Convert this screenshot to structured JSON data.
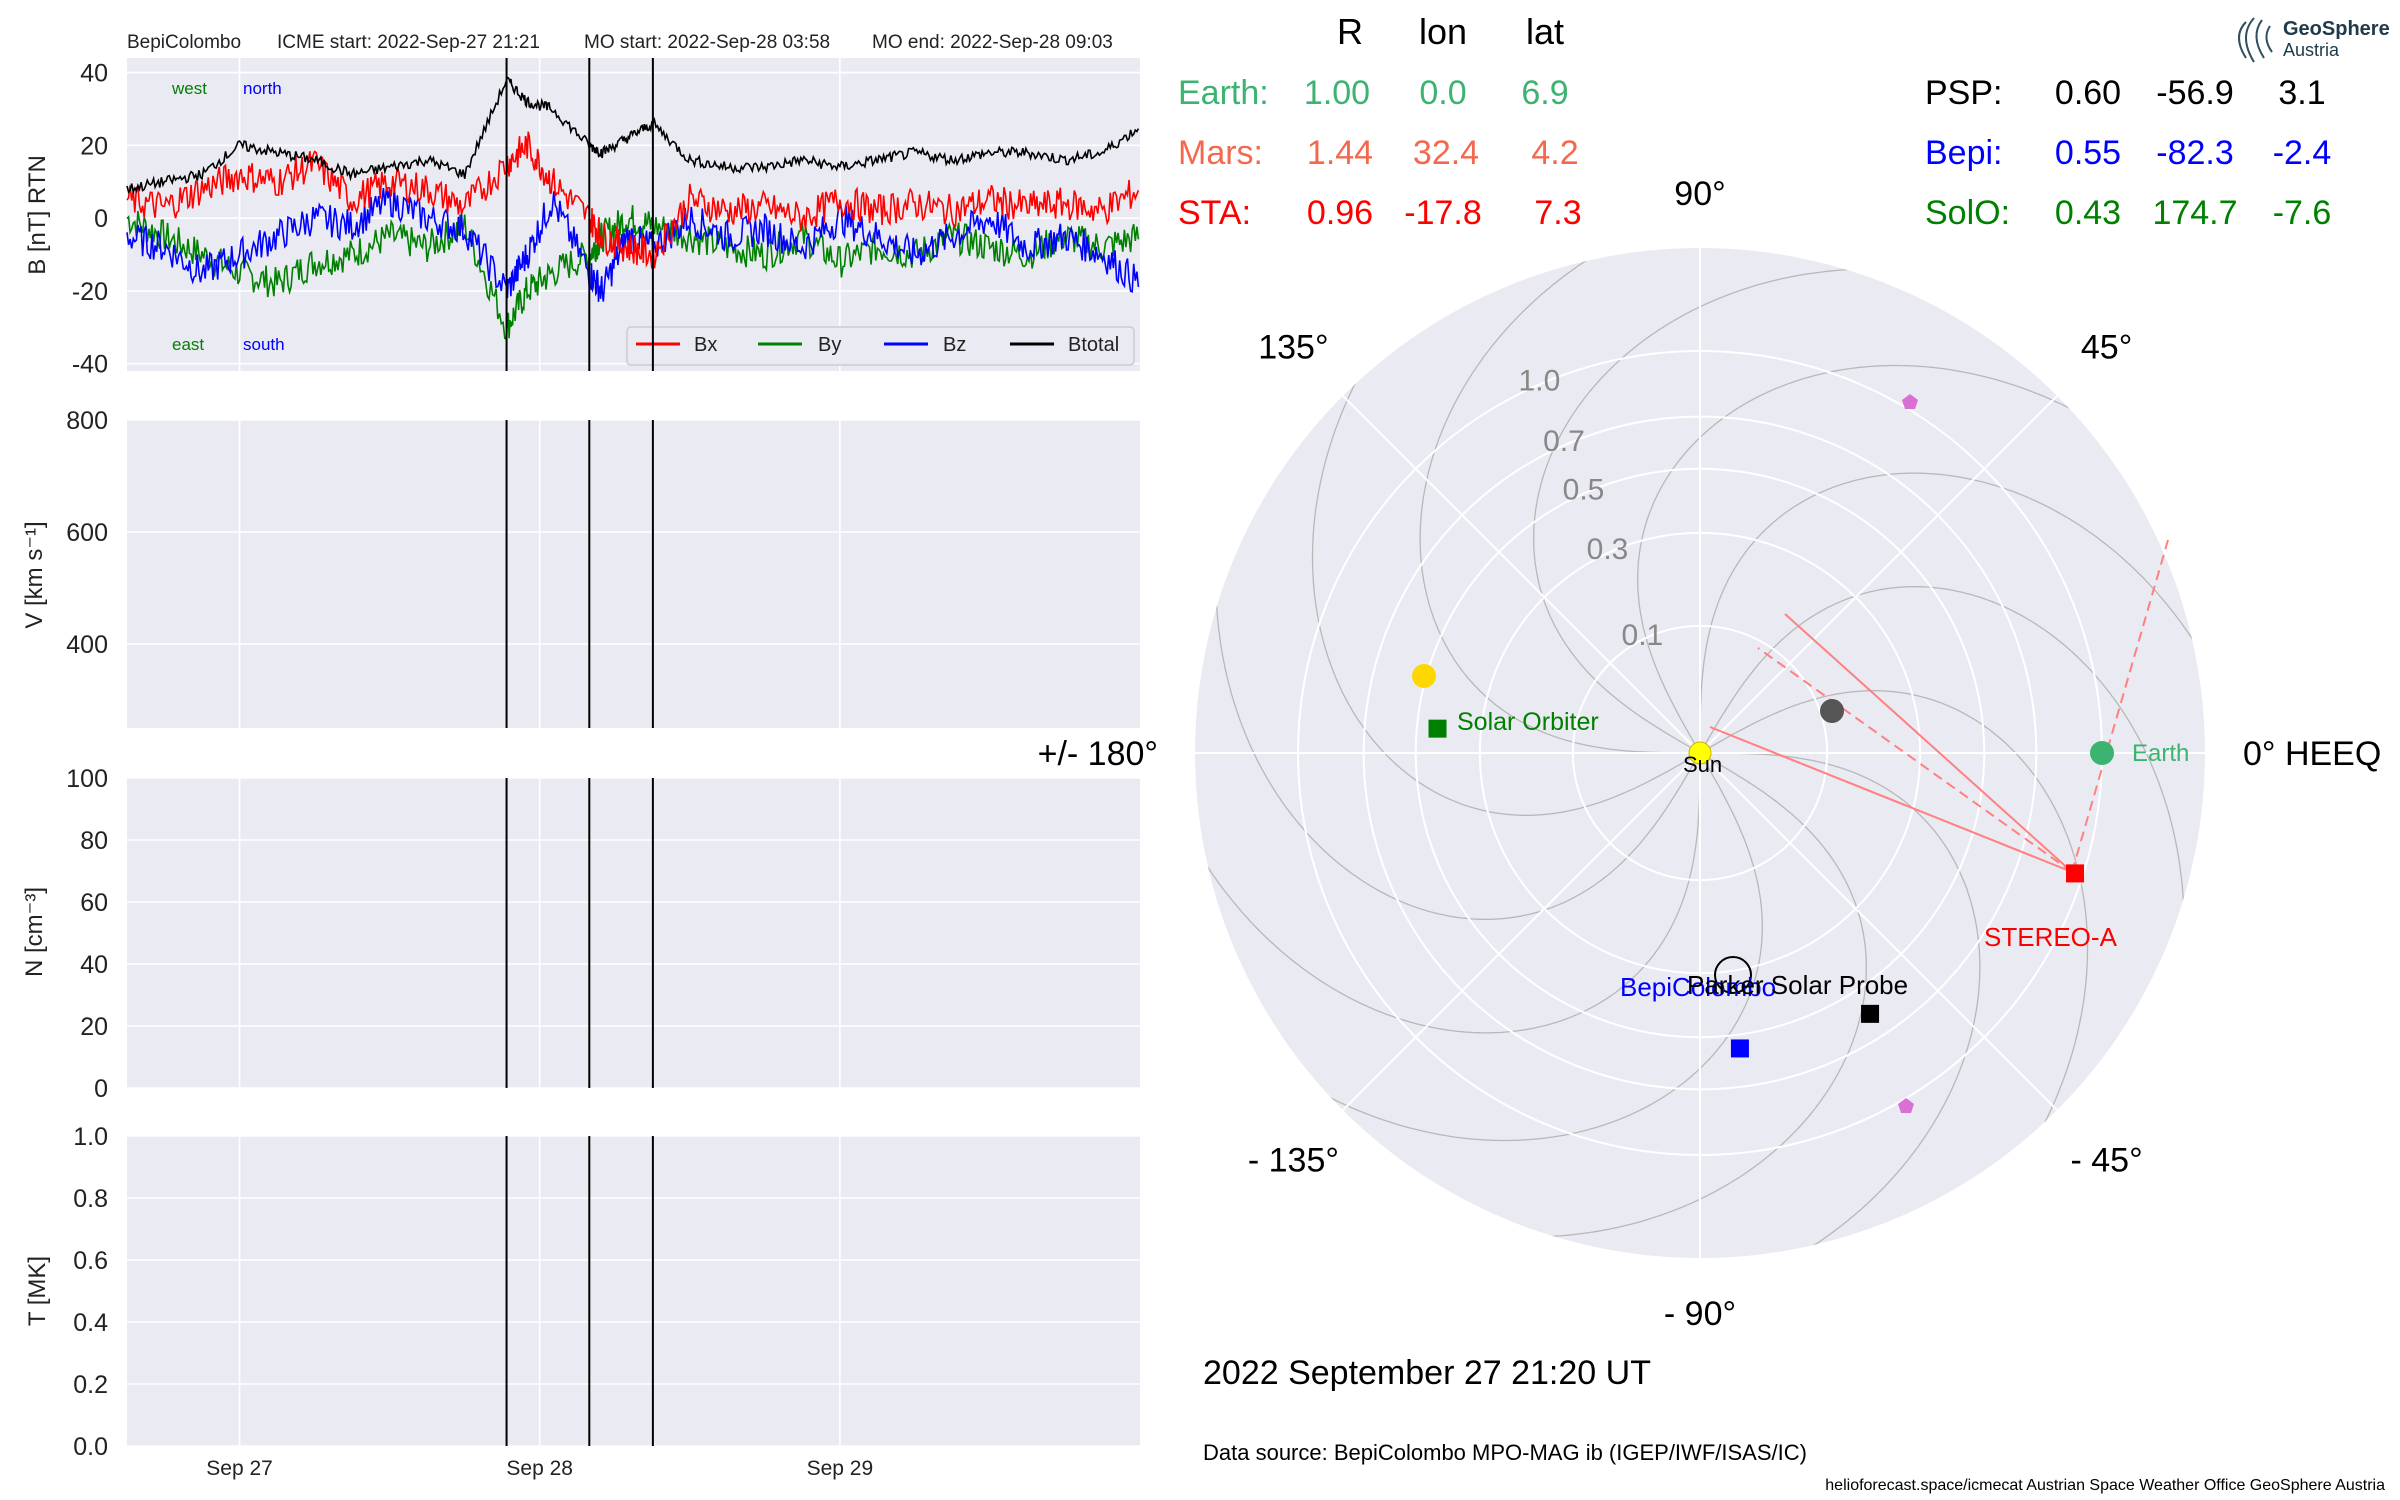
{
  "header": {
    "spacecraft": "BepiColombo",
    "icme_start": "ICME start: 2022-Sep-27 21:21",
    "mo_start": "MO start: 2022-Sep-28 03:58",
    "mo_end": "MO end: 2022-Sep-28 09:03"
  },
  "colors": {
    "Bx": "#ff0000",
    "By": "#008000",
    "Bz": "#0000ff",
    "Btotal": "#000000",
    "earth": "#3cb371",
    "mars": "#f4694e",
    "sta": "#ff0000",
    "psp": "#000000",
    "bepi": "#0000ff",
    "solo": "#008000",
    "panel_bg": "#eaeaf2",
    "grid": "#ffffff"
  },
  "chart_data": [
    {
      "type": "line",
      "panel": "magnetic_field",
      "ylabel": "B [nT] RTN",
      "ylim": [
        -42,
        44
      ],
      "yticks": [
        40,
        20,
        0,
        -20,
        -40
      ],
      "annotations": {
        "top_left": [
          "west",
          "north"
        ],
        "bottom_left": [
          "east",
          "south"
        ]
      },
      "legend": {
        "placement": "lower-right",
        "entries": [
          "Bx",
          "By",
          "Bz",
          "Btotal"
        ]
      },
      "x_range_days": [
        "2022-09-26 15:00",
        "2022-09-30 00:00"
      ],
      "series": [
        {
          "name": "Btotal",
          "x": [
            "2022-09-26 15:00",
            "2022-09-26 18:00",
            "2022-09-26 21:00",
            "2022-09-27 00:00",
            "2022-09-27 03:00",
            "2022-09-27 06:00",
            "2022-09-27 09:00",
            "2022-09-27 12:00",
            "2022-09-27 15:00",
            "2022-09-27 18:00",
            "2022-09-27 21:21",
            "2022-09-27 23:00",
            "2022-09-28 01:00",
            "2022-09-28 03:58",
            "2022-09-28 05:00",
            "2022-09-28 07:00",
            "2022-09-28 09:03",
            "2022-09-28 12:00",
            "2022-09-28 15:00",
            "2022-09-28 18:00",
            "2022-09-28 21:00",
            "2022-09-29 00:00",
            "2022-09-29 03:00",
            "2022-09-29 06:00",
            "2022-09-29 09:00",
            "2022-09-29 12:00",
            "2022-09-29 15:00",
            "2022-09-29 18:00",
            "2022-09-29 21:00",
            "2022-09-30 00:00"
          ],
          "values": [
            8,
            10,
            12,
            20,
            18,
            16,
            12,
            14,
            16,
            12,
            38,
            32,
            30,
            20,
            18,
            22,
            26,
            16,
            14,
            14,
            16,
            14,
            16,
            18,
            16,
            18,
            18,
            16,
            18,
            25
          ]
        },
        {
          "name": "Bx",
          "x": [
            "2022-09-26 15:00",
            "2022-09-26 18:00",
            "2022-09-26 21:00",
            "2022-09-27 00:00",
            "2022-09-27 03:00",
            "2022-09-27 06:00",
            "2022-09-27 09:00",
            "2022-09-27 12:00",
            "2022-09-27 15:00",
            "2022-09-27 18:00",
            "2022-09-27 21:21",
            "2022-09-27 23:00",
            "2022-09-28 01:00",
            "2022-09-28 03:58",
            "2022-09-28 05:00",
            "2022-09-28 07:00",
            "2022-09-28 09:03",
            "2022-09-28 12:00",
            "2022-09-28 15:00",
            "2022-09-28 18:00",
            "2022-09-28 21:00",
            "2022-09-29 00:00",
            "2022-09-29 03:00",
            "2022-09-29 06:00",
            "2022-09-29 09:00",
            "2022-09-29 12:00",
            "2022-09-29 15:00",
            "2022-09-29 18:00",
            "2022-09-29 21:00",
            "2022-09-30 00:00"
          ],
          "values": [
            5,
            3,
            8,
            12,
            10,
            15,
            5,
            10,
            8,
            3,
            15,
            20,
            10,
            0,
            -5,
            -8,
            -10,
            5,
            2,
            3,
            0,
            5,
            2,
            4,
            2,
            5,
            3,
            4,
            2,
            8
          ]
        },
        {
          "name": "By",
          "x": [
            "2022-09-26 15:00",
            "2022-09-26 18:00",
            "2022-09-26 21:00",
            "2022-09-27 00:00",
            "2022-09-27 03:00",
            "2022-09-27 06:00",
            "2022-09-27 09:00",
            "2022-09-27 12:00",
            "2022-09-27 15:00",
            "2022-09-27 18:00",
            "2022-09-27 21:21",
            "2022-09-27 23:00",
            "2022-09-28 01:00",
            "2022-09-28 03:58",
            "2022-09-28 05:00",
            "2022-09-28 07:00",
            "2022-09-28 09:03",
            "2022-09-28 12:00",
            "2022-09-28 15:00",
            "2022-09-28 18:00",
            "2022-09-28 21:00",
            "2022-09-29 00:00",
            "2022-09-29 03:00",
            "2022-09-29 06:00",
            "2022-09-29 09:00",
            "2022-09-29 12:00",
            "2022-09-29 15:00",
            "2022-09-29 18:00",
            "2022-09-29 21:00",
            "2022-09-30 00:00"
          ],
          "values": [
            0,
            -5,
            -10,
            -15,
            -18,
            -12,
            -10,
            -5,
            -8,
            -2,
            -30,
            -20,
            -15,
            -10,
            -5,
            0,
            -2,
            -5,
            -8,
            -10,
            -5,
            -12,
            -8,
            -10,
            -5,
            -8,
            -10,
            -5,
            -8,
            -5
          ]
        },
        {
          "name": "Bz",
          "x": [
            "2022-09-26 15:00",
            "2022-09-26 18:00",
            "2022-09-26 21:00",
            "2022-09-27 00:00",
            "2022-09-27 03:00",
            "2022-09-27 06:00",
            "2022-09-27 09:00",
            "2022-09-27 12:00",
            "2022-09-27 15:00",
            "2022-09-27 18:00",
            "2022-09-27 21:21",
            "2022-09-27 23:00",
            "2022-09-28 01:00",
            "2022-09-28 03:58",
            "2022-09-28 05:00",
            "2022-09-28 07:00",
            "2022-09-28 09:03",
            "2022-09-28 12:00",
            "2022-09-28 15:00",
            "2022-09-28 18:00",
            "2022-09-28 21:00",
            "2022-09-29 00:00",
            "2022-09-29 03:00",
            "2022-09-29 06:00",
            "2022-09-29 09:00",
            "2022-09-29 12:00",
            "2022-09-29 15:00",
            "2022-09-29 18:00",
            "2022-09-29 21:00",
            "2022-09-30 00:00"
          ],
          "values": [
            -5,
            -8,
            -15,
            -10,
            -5,
            0,
            -2,
            5,
            0,
            -3,
            -20,
            -10,
            5,
            -15,
            -20,
            -5,
            -8,
            0,
            -5,
            -3,
            -8,
            0,
            -5,
            -10,
            -5,
            0,
            -8,
            -5,
            -10,
            -18
          ]
        }
      ]
    },
    {
      "type": "line",
      "panel": "speed",
      "ylabel": "V [km s⁻¹]",
      "ylim": [
        250,
        800
      ],
      "yticks": [
        800,
        600,
        400
      ],
      "series": []
    },
    {
      "type": "line",
      "panel": "density",
      "ylabel": "N [cm⁻³]",
      "ylim": [
        0,
        100
      ],
      "yticks": [
        100,
        80,
        60,
        40,
        20,
        0
      ],
      "series": []
    },
    {
      "type": "line",
      "panel": "temperature",
      "ylabel": "T [MK]",
      "ylim": [
        0.0,
        1.0
      ],
      "yticks": [
        "1.0",
        "0.8",
        "0.6",
        "0.4",
        "0.2",
        "0.0"
      ],
      "xticks": [
        {
          "label": "Sep 27",
          "x": "2022-09-27 00:00"
        },
        {
          "label": "Sep 28",
          "x": "2022-09-28 00:00"
        },
        {
          "label": "Sep 29",
          "x": "2022-09-29 00:00"
        }
      ],
      "series": []
    },
    {
      "type": "scatter",
      "panel": "polar_heeq",
      "radial_ticks": [
        "0.1",
        "0.3",
        "0.5",
        "0.7",
        "1.0"
      ],
      "angle_labels": [
        "90°",
        "45°",
        "0° HEEQ",
        "- 45°",
        "- 90°",
        "- 135°",
        "+/- 180°",
        "135°"
      ],
      "points": [
        {
          "name": "Earth",
          "r": 1.0,
          "lon": 0.0,
          "marker": "circle"
        },
        {
          "name": "STEREO-A",
          "r": 0.96,
          "lon": -17.8,
          "marker": "square"
        },
        {
          "name": "BepiColombo",
          "r": 0.55,
          "lon": -82.3,
          "marker": "square"
        },
        {
          "name": "Parker Solar Probe",
          "r": 0.6,
          "lon": -56.9,
          "marker": "square"
        },
        {
          "name": "Solar Orbiter",
          "r": 0.43,
          "lon": 174.7,
          "marker": "square"
        },
        {
          "name": "Mars",
          "r": 1.44,
          "lon": 32.4,
          "marker": "circle"
        },
        {
          "name": "Sun",
          "r": 0.0,
          "lon": 0.0,
          "marker": "circle"
        }
      ]
    }
  ],
  "position_table": {
    "headers": [
      "R",
      "lon",
      "lat"
    ],
    "rows": [
      {
        "label": "Earth:",
        "R": "1.00",
        "lon": "0.0",
        "lat": "6.9"
      },
      {
        "label": "Mars:",
        "R": "1.44",
        "lon": "32.4",
        "lat": "4.2"
      },
      {
        "label": "STA:",
        "R": "0.96",
        "lon": "-17.8",
        "lat": "7.3"
      },
      {
        "label": "PSP:",
        "R": "0.60",
        "lon": "-56.9",
        "lat": "3.1"
      },
      {
        "label": "Bepi:",
        "R": "0.55",
        "lon": "-82.3",
        "lat": "-2.4"
      },
      {
        "label": "SolO:",
        "R": "0.43",
        "lon": "174.7",
        "lat": "-7.6"
      }
    ]
  },
  "polar_labels": {
    "earth": "Earth",
    "sta": "STEREO-A",
    "solo": "Solar Orbiter",
    "sun": "Sun",
    "bepi": "BepiColombo",
    "psp": "Parker Solar Probe"
  },
  "footer": {
    "datetime": "2022 September 27  21:20 UT",
    "source": "Data source: BepiColombo MPO-MAG ib (IGEP/IWF/ISAS/IC)",
    "credits": "helioforecast.space/icmecat   Austrian Space Weather Office   GeoSphere Austria"
  },
  "logo": {
    "line1": "GeoSphere",
    "line2": "Austria"
  }
}
